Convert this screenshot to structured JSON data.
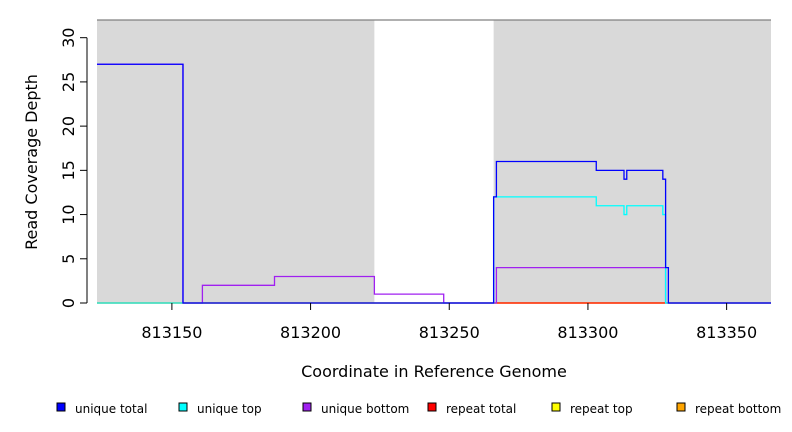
{
  "chart_data": {
    "type": "line",
    "xlabel": "Coordinate in Reference Genome",
    "ylabel": "Read Coverage Depth",
    "xlim": [
      813123,
      813366
    ],
    "ylim": [
      0,
      32
    ],
    "x_ticks": [
      813150,
      813200,
      813250,
      813300,
      813350
    ],
    "y_ticks": [
      0,
      5,
      10,
      15,
      20,
      25,
      30
    ],
    "background_color": "#d9d9d9",
    "unshaded_ranges": [
      [
        813223,
        813266
      ]
    ],
    "legend_position": "bottom",
    "series": [
      {
        "name": "unique total",
        "color": "#0000ff",
        "points": [
          [
            813123,
            27
          ],
          [
            813154,
            27
          ],
          [
            813154,
            0
          ],
          [
            813266,
            0
          ],
          [
            813266,
            12
          ],
          [
            813267,
            12
          ],
          [
            813267,
            16
          ],
          [
            813303,
            16
          ],
          [
            813303,
            15
          ],
          [
            813313,
            15
          ],
          [
            813313,
            14
          ],
          [
            813314,
            14
          ],
          [
            813314,
            15
          ],
          [
            813327,
            15
          ],
          [
            813327,
            14
          ],
          [
            813328,
            14
          ],
          [
            813328,
            4
          ],
          [
            813329,
            4
          ],
          [
            813329,
            0
          ],
          [
            813366,
            0
          ]
        ]
      },
      {
        "name": "unique top",
        "color": "#00ffff",
        "points": [
          [
            813123,
            0
          ],
          [
            813154,
            0
          ],
          [
            813266,
            0
          ],
          [
            813266,
            12
          ],
          [
            813303,
            12
          ],
          [
            813303,
            11
          ],
          [
            813313,
            11
          ],
          [
            813313,
            10
          ],
          [
            813314,
            10
          ],
          [
            813314,
            11
          ],
          [
            813327,
            11
          ],
          [
            813327,
            10
          ],
          [
            813328,
            10
          ],
          [
            813328,
            0
          ],
          [
            813366,
            0
          ]
        ]
      },
      {
        "name": "unique bottom",
        "color": "#a020f0",
        "points": [
          [
            813123,
            27
          ],
          [
            813154,
            27
          ],
          [
            813154,
            0
          ],
          [
            813161,
            0
          ],
          [
            813161,
            2
          ],
          [
            813187,
            2
          ],
          [
            813187,
            3
          ],
          [
            813223,
            3
          ],
          [
            813223,
            1
          ],
          [
            813248,
            1
          ],
          [
            813248,
            0
          ],
          [
            813267,
            0
          ],
          [
            813267,
            4
          ],
          [
            813328,
            4
          ],
          [
            813328,
            0
          ],
          [
            813366,
            0
          ]
        ]
      },
      {
        "name": "repeat total",
        "color": "#ff0000",
        "points": [
          [
            813123,
            0
          ],
          [
            813366,
            0
          ]
        ]
      },
      {
        "name": "repeat top",
        "color": "#ffff00",
        "points": [
          [
            813123,
            0
          ],
          [
            813366,
            0
          ]
        ]
      },
      {
        "name": "repeat bottom",
        "color": "#ffa500",
        "points": [
          [
            813123,
            0
          ],
          [
            813366,
            0
          ]
        ]
      }
    ]
  }
}
